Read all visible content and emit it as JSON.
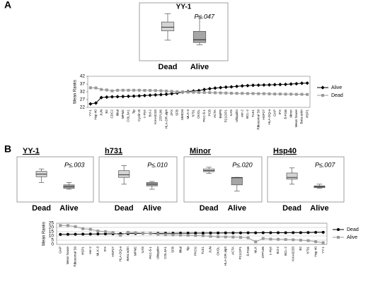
{
  "chart_data": [
    {
      "type": "box",
      "panel": "A",
      "title": "YY-1",
      "annotation": "P≤.047",
      "categories": [
        "Dead",
        "Alive"
      ],
      "colors": [
        "#d4d4d4",
        "#a6a6a6"
      ],
      "ylim": [
        0,
        10
      ],
      "boxes": [
        {
          "min": 3.5,
          "q1": 5.5,
          "median": 6.3,
          "q3": 7.4,
          "max": 9.2
        },
        {
          "min": 2.5,
          "q1": 3,
          "median": 3.6,
          "q3": 5.4,
          "max": 8.5
        }
      ]
    },
    {
      "type": "line",
      "ylabel": "Mean Ranks",
      "ylim": [
        22,
        42
      ],
      "yticks": [
        22,
        27,
        32,
        37,
        42
      ],
      "grid": false,
      "legend": "right",
      "categories": [
        "YY-1",
        "Hsp 40",
        "JUN",
        "B2",
        "CDC2",
        "Ikkal",
        "MPM2",
        "COL3A1",
        "Tip",
        "Cyclin B",
        "c-myc",
        "Bcl-2",
        "KIAA0233",
        "ZFP106",
        "HLA-DR alph",
        "ZFX",
        "SFB",
        "MMCM",
        "MLK-3",
        "h731",
        "OVOL",
        "PKC-δ-1",
        "PCB",
        "ACTA",
        "BMP8",
        "P21CIP1",
        "ILK5",
        "Ubiquitin",
        "eer-2",
        "BCL-2",
        "TLE1",
        "Ribosomal S9",
        "HSP27",
        "HLA-DQ-a",
        "GAP",
        "IFX",
        "δ-FGB",
        "Minor",
        "Mean house",
        "Beta actin",
        "HSP1"
      ],
      "series": [
        {
          "name": "Alive",
          "color": "#000000",
          "marker": "diamond",
          "values": [
            24.2,
            24.8,
            28.3,
            28.6,
            28.8,
            28.9,
            29,
            29.1,
            29.2,
            29.4,
            29.6,
            29.8,
            30,
            30.2,
            30.4,
            30.8,
            31.2,
            31.8,
            32.2,
            32.5,
            32.8,
            33.5,
            34,
            34.4,
            34.7,
            35,
            35.2,
            35.5,
            35.8,
            36,
            36.2,
            36.3,
            36.4,
            36.5,
            36.6,
            36.7,
            36.8,
            37,
            37.2,
            37.5,
            37.6
          ]
        },
        {
          "name": "Dead",
          "color": "#999999",
          "marker": "square",
          "values": [
            34.6,
            34.5,
            33.5,
            33.2,
            32.6,
            33,
            33,
            33,
            33,
            33,
            32.9,
            32.9,
            32.8,
            32.7,
            32.5,
            32.3,
            32,
            31.9,
            31.8,
            31.7,
            31.6,
            31.6,
            31.5,
            31.4,
            31.3,
            31.2,
            31.1,
            31,
            31,
            30.9,
            30.9,
            30.8,
            30.8,
            30.7,
            30.6,
            30.6,
            30.5,
            30.5,
            30.4,
            30.4,
            30.3
          ]
        }
      ]
    },
    {
      "type": "box",
      "panel": "B",
      "title": "YY-1",
      "annotation": "P≤.003",
      "categories": [
        "Dead",
        "Alive"
      ],
      "colors": [
        "#d4d4d4",
        "#a6a6a6"
      ],
      "ylim": [
        0,
        10
      ],
      "boxes": [
        {
          "min": 4.5,
          "q1": 6.2,
          "median": 7,
          "q3": 7.8,
          "max": 8.5
        },
        {
          "min": 2.5,
          "q1": 2.8,
          "median": 3.3,
          "q3": 3.8,
          "max": 4.5
        }
      ]
    },
    {
      "type": "box",
      "title": "h731",
      "annotation": "P≤.010",
      "categories": [
        "Dead",
        "Alive"
      ],
      "colors": [
        "#d4d4d4",
        "#a6a6a6"
      ],
      "ylim": [
        0,
        10
      ],
      "boxes": [
        {
          "min": 4,
          "q1": 6,
          "median": 6.8,
          "q3": 8,
          "max": 9.5
        },
        {
          "min": 2.5,
          "q1": 3.5,
          "median": 4,
          "q3": 4.5,
          "max": 4.8
        }
      ]
    },
    {
      "type": "box",
      "title": "Minor",
      "annotation": "P≤.020",
      "categories": [
        "Dead",
        "Alive"
      ],
      "colors": [
        "#d4d4d4",
        "#a6a6a6"
      ],
      "ylim": [
        0,
        10
      ],
      "boxes": [
        {
          "min": 7.2,
          "q1": 7.7,
          "median": 8,
          "q3": 8.5,
          "max": 9
        },
        {
          "min": 2,
          "q1": 3.8,
          "median": 5.9,
          "q3": 6,
          "max": 6
        }
      ]
    },
    {
      "type": "box",
      "title": "Hsp40",
      "annotation": "P≤.007",
      "categories": [
        "Dead",
        "Alive"
      ],
      "colors": [
        "#d4d4d4",
        "#a6a6a6"
      ],
      "ylim": [
        0,
        10
      ],
      "boxes": [
        {
          "min": 4,
          "q1": 5.5,
          "median": 6,
          "q3": 7.3,
          "max": 8.8
        },
        {
          "min": 2.8,
          "q1": 3,
          "median": 3.3,
          "q3": 3.5,
          "max": 4
        }
      ]
    },
    {
      "type": "line",
      "ylabel": "Mean Ranks",
      "ylim": [
        0,
        25
      ],
      "yticks": [
        0,
        5,
        10,
        15,
        20,
        25
      ],
      "grid": true,
      "legend": "right",
      "categories": [
        "GAP",
        "Mean house",
        "Ribosomal S9",
        "HSP1",
        "eer-2",
        "MLK-3",
        "IFX",
        "HSP27",
        "HLA-DQ-a",
        "Beta actin",
        "MPM2",
        "ILK5",
        "PKC-δ-1",
        "Ubiquitin",
        "COL3A1",
        "SFB",
        "Ikkal",
        "Tip",
        "PKCG",
        "TLE1",
        "JUN",
        "OVOL",
        "HLA-DR alph",
        "ACTA",
        "P21CIP1",
        "δ-FGB",
        "MLK",
        "ZFP106",
        "c-myc",
        "Bcl-2",
        "BCL-2",
        "KIAA0233",
        "B2",
        "h731",
        "Hsp 40",
        "YY-1"
      ],
      "series": [
        {
          "name": "Dead",
          "color": "#000000",
          "marker": "circle",
          "values": [
            11.8,
            11.9,
            12,
            12.1,
            12.2,
            12.3,
            12.4,
            12.5,
            12.6,
            12.7,
            12.8,
            12.9,
            13,
            13,
            13.1,
            13.1,
            13.2,
            13.2,
            13.3,
            13.3,
            13.4,
            13.4,
            13.5,
            13.5,
            13.5,
            13.6,
            13.6,
            13.7,
            13.7,
            13.8,
            13.8,
            13.9,
            13.9,
            14,
            14.2,
            14.3
          ]
        },
        {
          "name": "Alive",
          "color": "#999999",
          "marker": "square",
          "values": [
            22.3,
            22.2,
            21,
            18.5,
            17.8,
            15.8,
            15,
            14,
            10.8,
            14.2,
            13.8,
            13.2,
            12.8,
            12,
            11.5,
            11.2,
            11,
            10.8,
            10.5,
            10.2,
            9.5,
            9,
            8.8,
            8.6,
            8.2,
            7.8,
            3,
            7,
            6.2,
            6,
            5.8,
            5.5,
            5,
            4.5,
            3.2,
            2
          ]
        }
      ]
    }
  ]
}
